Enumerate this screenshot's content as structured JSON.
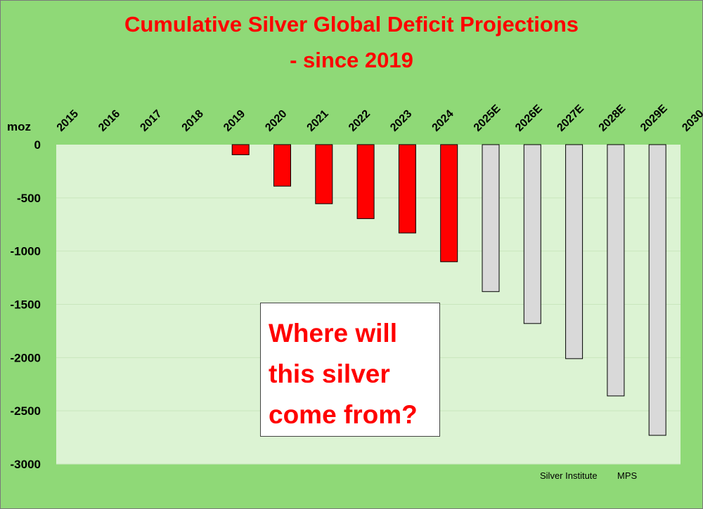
{
  "chart_data": {
    "type": "bar",
    "title_lines": [
      "Cumulative Silver Global Deficit Projections",
      "- since 2019"
    ],
    "ylabel": "moz",
    "ylim": [
      -3000,
      0
    ],
    "yticks": [
      0,
      -500,
      -1000,
      -1500,
      -2000,
      -2500,
      -3000
    ],
    "categories": [
      "2015",
      "2016",
      "2017",
      "2018",
      "2019",
      "2020",
      "2021",
      "2022",
      "2023",
      "2024",
      "2025E",
      "2026E",
      "2027E",
      "2028E",
      "2029E",
      "2030"
    ],
    "values": [
      null,
      null,
      null,
      null,
      -95,
      -390,
      -555,
      -695,
      -830,
      -1100,
      -1380,
      -1680,
      -2010,
      -2360,
      -2730,
      null
    ],
    "bar_status": [
      "",
      "",
      "",
      "",
      "actual",
      "actual",
      "actual",
      "actual",
      "actual",
      "actual",
      "estimate",
      "estimate",
      "estimate",
      "estimate",
      "estimate",
      ""
    ],
    "colors": {
      "actual": "#ff0000",
      "estimate": "#d9d9d9",
      "plot_bg": "#dcf3d3",
      "page_bg": "#8fd977",
      "gridline": "#c9e6bd"
    },
    "grid": true,
    "annotation_lines": [
      "Where will",
      "this silver",
      "come from?"
    ],
    "source": [
      "Silver Institute",
      "MPS"
    ]
  }
}
